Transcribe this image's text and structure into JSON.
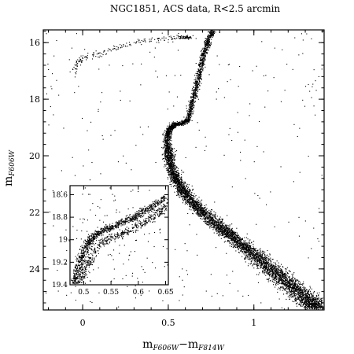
{
  "chart_data": [
    {
      "type": "scatter",
      "title": "NGC1851, ACS data, R<2.5 arcmin",
      "xlabel": {
        "main": "m",
        "sub1": "F606W",
        "dash": "−m",
        "sub2": "F814W"
      },
      "ylabel": {
        "main": "m",
        "sub": "F606W"
      },
      "xlim": [
        -0.23,
        1.41
      ],
      "ylim": [
        25.45,
        15.55
      ],
      "y_inverted": true,
      "xticks": [
        0,
        0.5,
        1
      ],
      "xtick_labels": [
        "0",
        "0.5",
        "1"
      ],
      "yticks": [
        16,
        18,
        20,
        22,
        24
      ],
      "ytick_labels": [
        "16",
        "18",
        "20",
        "22",
        "24"
      ],
      "grid": false,
      "point_color": "#000000",
      "sequences": {
        "main_sequence_ridge": [
          {
            "x": 0.49,
            "y": 19.5
          },
          {
            "x": 0.5,
            "y": 20.0
          },
          {
            "x": 0.52,
            "y": 20.5
          },
          {
            "x": 0.56,
            "y": 21.0
          },
          {
            "x": 0.62,
            "y": 21.5
          },
          {
            "x": 0.7,
            "y": 22.0
          },
          {
            "x": 0.8,
            "y": 22.5
          },
          {
            "x": 0.9,
            "y": 23.0
          },
          {
            "x": 1.0,
            "y": 23.5
          },
          {
            "x": 1.1,
            "y": 24.0
          },
          {
            "x": 1.2,
            "y": 24.5
          },
          {
            "x": 1.3,
            "y": 25.0
          },
          {
            "x": 1.38,
            "y": 25.4
          }
        ],
        "subgiant_branch": [
          {
            "x": 0.49,
            "y": 19.5
          },
          {
            "x": 0.495,
            "y": 19.2
          },
          {
            "x": 0.51,
            "y": 19.0
          },
          {
            "x": 0.54,
            "y": 18.88
          },
          {
            "x": 0.58,
            "y": 18.82
          },
          {
            "x": 0.61,
            "y": 18.75
          }
        ],
        "red_giant_branch": [
          {
            "x": 0.61,
            "y": 18.75
          },
          {
            "x": 0.63,
            "y": 18.3
          },
          {
            "x": 0.65,
            "y": 17.8
          },
          {
            "x": 0.67,
            "y": 17.3
          },
          {
            "x": 0.69,
            "y": 16.8
          },
          {
            "x": 0.71,
            "y": 16.3
          },
          {
            "x": 0.73,
            "y": 15.9
          },
          {
            "x": 0.76,
            "y": 15.55
          }
        ],
        "horizontal_branch": [
          {
            "x": -0.05,
            "y": 17.0
          },
          {
            "x": -0.03,
            "y": 16.7
          },
          {
            "x": 0.0,
            "y": 16.55
          },
          {
            "x": 0.1,
            "y": 16.35
          },
          {
            "x": 0.2,
            "y": 16.15
          },
          {
            "x": 0.3,
            "y": 16.0
          },
          {
            "x": 0.4,
            "y": 15.9
          },
          {
            "x": 0.5,
            "y": 15.85
          },
          {
            "x": 0.57,
            "y": 15.82
          }
        ],
        "red_clump": {
          "x": 0.6,
          "y": 15.8
        }
      },
      "inset": {
        "type": "scatter",
        "xlim": [
          0.475,
          0.655
        ],
        "ylim": [
          19.4,
          18.52
        ],
        "y_inverted": true,
        "xticks": [
          0.5,
          0.55,
          0.6,
          0.65
        ],
        "xtick_labels": [
          "0.5",
          "0.55",
          "0.6",
          "0.65"
        ],
        "yticks": [
          18.6,
          18.8,
          19,
          19.2,
          19.4
        ],
        "ytick_labels": [
          "18.6",
          "18.8",
          "19",
          "19.2",
          "19.4"
        ],
        "sequences": {
          "bright_subgiant_branch": [
            {
              "x": 0.48,
              "y": 19.4
            },
            {
              "x": 0.49,
              "y": 19.25
            },
            {
              "x": 0.5,
              "y": 19.1
            },
            {
              "x": 0.51,
              "y": 19.0
            },
            {
              "x": 0.53,
              "y": 18.93
            },
            {
              "x": 0.56,
              "y": 18.86
            },
            {
              "x": 0.59,
              "y": 18.8
            },
            {
              "x": 0.62,
              "y": 18.72
            },
            {
              "x": 0.65,
              "y": 18.62
            }
          ],
          "faint_subgiant_branch": [
            {
              "x": 0.49,
              "y": 19.4
            },
            {
              "x": 0.5,
              "y": 19.28
            },
            {
              "x": 0.51,
              "y": 19.18
            },
            {
              "x": 0.525,
              "y": 19.05
            },
            {
              "x": 0.55,
              "y": 18.98
            },
            {
              "x": 0.58,
              "y": 18.92
            },
            {
              "x": 0.61,
              "y": 18.85
            },
            {
              "x": 0.64,
              "y": 18.75
            },
            {
              "x": 0.655,
              "y": 18.68
            }
          ]
        }
      }
    }
  ]
}
